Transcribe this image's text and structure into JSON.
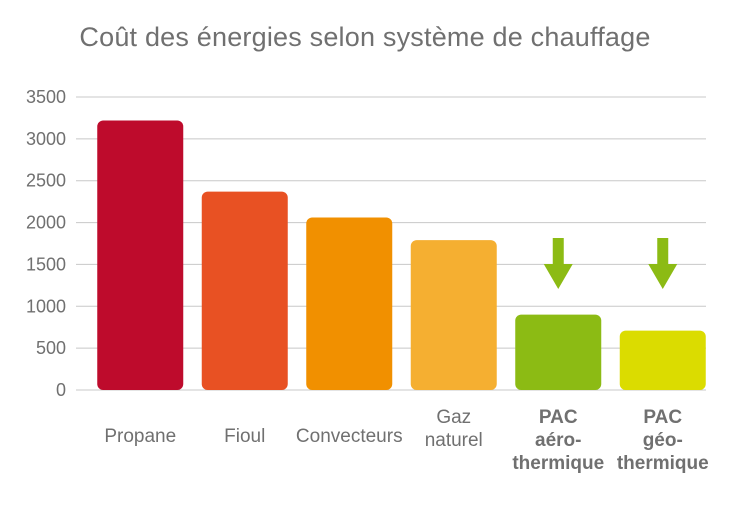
{
  "chart_data": {
    "type": "bar",
    "title": "Coût des énergies selon système de chauffage",
    "xlabel": "",
    "ylabel": "",
    "ylim": [
      0,
      3500
    ],
    "yticks": [
      0,
      500,
      1000,
      1500,
      2000,
      2500,
      3000,
      3500
    ],
    "grid": true,
    "legend": "none",
    "categories": [
      {
        "lines": [
          "Propane"
        ],
        "bold": false
      },
      {
        "lines": [
          "Fioul"
        ],
        "bold": false
      },
      {
        "lines": [
          "Convecteurs"
        ],
        "bold": false
      },
      {
        "lines": [
          "Gaz",
          "naturel"
        ],
        "bold": false
      },
      {
        "lines": [
          "PAC",
          "aéro-",
          "thermique"
        ],
        "bold": true
      },
      {
        "lines": [
          "PAC",
          "géo-",
          "thermique"
        ],
        "bold": true
      }
    ],
    "values": [
      3220,
      2370,
      2060,
      1790,
      900,
      710
    ],
    "colors": [
      "#be0b2c",
      "#e85123",
      "#f19000",
      "#f5af31",
      "#8cbb14",
      "#dbdc00"
    ],
    "annotations": [
      {
        "type": "down-arrow",
        "category_index": 4,
        "color": "#8cbb14"
      },
      {
        "type": "down-arrow",
        "category_index": 5,
        "color": "#8cbb14"
      }
    ]
  }
}
